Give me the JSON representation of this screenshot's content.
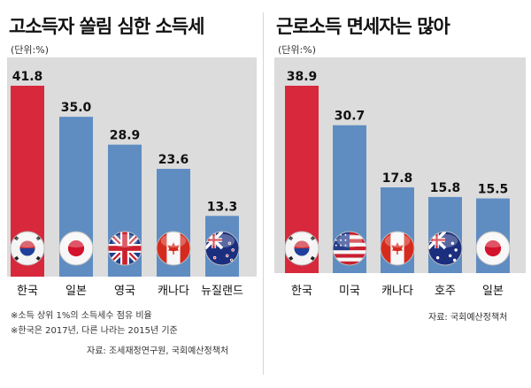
{
  "left": {
    "title": "고소득자 쏠림 심한 소득세",
    "unit": "(단위:%)",
    "notes": [
      "※소득 상위 1%의 소득세수 점유 비율",
      "※한국은 2017년, 다른 나라는 2015년 기준"
    ],
    "source": "자료: 조세재정연구원, 국회예산정책처"
  },
  "right": {
    "title": "근로소득 면세자는 많아",
    "unit": "(단위:%)",
    "source": "자료: 국회예산정책처"
  },
  "colors": {
    "highlight_bar": "#d8283c",
    "bar": "#5f8dc2",
    "plot_background": "#dcdcdc"
  },
  "chart_data": [
    {
      "type": "bar",
      "title": "고소득자 쏠림 심한 소득세",
      "ylabel": "(단위:%)",
      "categories": [
        "한국",
        "일본",
        "영국",
        "캐나다",
        "뉴질랜드"
      ],
      "values": [
        41.8,
        35.0,
        28.9,
        23.6,
        13.3
      ],
      "value_labels": [
        "41.8",
        "35.0",
        "28.9",
        "23.6",
        "13.3"
      ],
      "flags": [
        "korea-flag",
        "japan-flag",
        "uk-flag",
        "canada-flag",
        "newzealand-flag"
      ],
      "highlight_index": 0,
      "ylim": [
        0,
        41.8
      ]
    },
    {
      "type": "bar",
      "title": "근로소득 면세자는 많아",
      "ylabel": "(단위:%)",
      "categories": [
        "한국",
        "미국",
        "캐나다",
        "호주",
        "일본"
      ],
      "values": [
        38.9,
        30.7,
        17.8,
        15.8,
        15.5
      ],
      "value_labels": [
        "38.9",
        "30.7",
        "17.8",
        "15.8",
        "15.5"
      ],
      "flags": [
        "korea-flag",
        "usa-flag",
        "canada-flag",
        "australia-flag",
        "japan-flag"
      ],
      "highlight_index": 0,
      "ylim": [
        0,
        38.9
      ]
    }
  ]
}
